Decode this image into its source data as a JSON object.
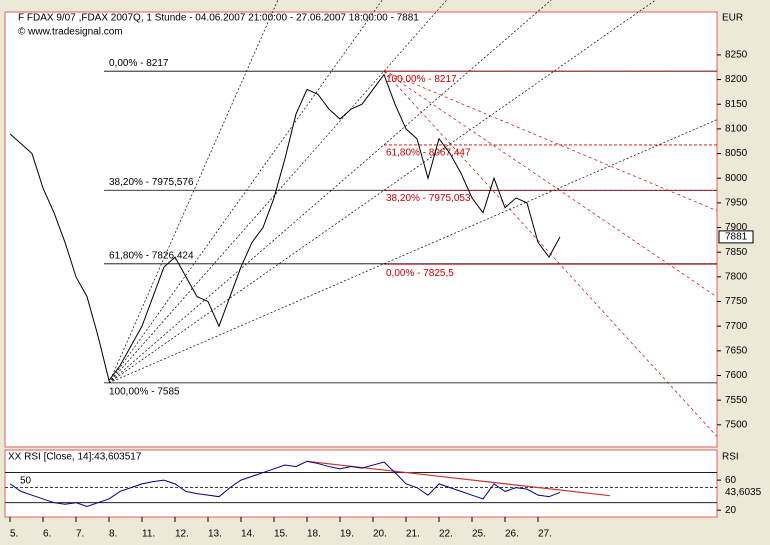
{
  "header": {
    "title": "F FDAX 9/07 ,FDAX 2007Q, 1 Stunde - 04.06.2007 21:00:00 - 27.06.2007 18:00:00 - 7881",
    "source": "© www.tradesignal.com",
    "unit": "EUR"
  },
  "chart_data": [
    {
      "type": "line",
      "categories": [
        "5.",
        null,
        null,
        "6.",
        null,
        null,
        "7.",
        null,
        null,
        "8.",
        null,
        null,
        "11.",
        null,
        null,
        "12.",
        null,
        null,
        "13.",
        null,
        null,
        "14.",
        null,
        null,
        "15.",
        null,
        null,
        "18.",
        null,
        null,
        "19.",
        null,
        null,
        "20.",
        null,
        null,
        "21.",
        null,
        null,
        "22.",
        null,
        null,
        "25.",
        null,
        null,
        "26.",
        null,
        null,
        "27.",
        null,
        null
      ],
      "series": [
        {
          "name": "FDAX",
          "color": "#000000",
          "values": [
            8090,
            8070,
            8050,
            7980,
            7930,
            7870,
            7800,
            7760,
            7680,
            7590,
            7620,
            7660,
            7700,
            7760,
            7820,
            7840,
            7800,
            7760,
            7750,
            7700,
            7760,
            7820,
            7870,
            7900,
            7960,
            8040,
            8130,
            8180,
            8170,
            8140,
            8120,
            8140,
            8150,
            8180,
            8210,
            8150,
            8100,
            8080,
            8000,
            8080,
            8050,
            8010,
            7960,
            7930,
            8000,
            7940,
            7960,
            7950,
            7870,
            7840,
            7881
          ]
        }
      ],
      "ylim": [
        7455,
        8337
      ],
      "yticks": [
        7500,
        7550,
        7600,
        7650,
        7700,
        7750,
        7800,
        7850,
        7900,
        7950,
        8000,
        8050,
        8100,
        8150,
        8200,
        8250
      ],
      "last_value": 7881,
      "fib_levels": [
        {
          "value": 8217,
          "label": "0,00% - 8217"
        },
        {
          "value": 7975.576,
          "label": "38,20% - 7975,576"
        },
        {
          "value": 7826.424,
          "label": "61,80% - 7826,424"
        },
        {
          "value": 7585,
          "label": "100,00% - 7585"
        }
      ],
      "fib_levels_down": [
        {
          "value": 8217,
          "label": "100,00% - 8217"
        },
        {
          "value": 8067.447,
          "label": "61,80% - 8067,447"
        },
        {
          "value": 7975.053,
          "label": "38,20% - 7975,053"
        },
        {
          "value": 7825.5,
          "label": "0,00% - 7825,5"
        }
      ],
      "fib_color": "#cc0000"
    },
    {
      "type": "line",
      "title": "XX RSI [Close, 14]:43,603517",
      "axis_label": "RSI",
      "series": [
        {
          "name": "RSI",
          "color": "#000080",
          "values": [
            55,
            45,
            40,
            35,
            30,
            28,
            30,
            25,
            30,
            35,
            45,
            50,
            55,
            58,
            60,
            55,
            45,
            42,
            40,
            38,
            50,
            60,
            65,
            70,
            75,
            80,
            78,
            85,
            82,
            78,
            75,
            78,
            76,
            80,
            84,
            70,
            55,
            50,
            40,
            55,
            50,
            45,
            40,
            35,
            55,
            45,
            50,
            48,
            40,
            38,
            43.6
          ]
        }
      ],
      "ylim": [
        11,
        100
      ],
      "yticks": [
        20,
        60
      ],
      "levels": [
        30,
        50,
        70
      ],
      "last_value": {
        "value": 43.6035,
        "label": "43,6035"
      },
      "trend_color": "#cc3333"
    }
  ]
}
